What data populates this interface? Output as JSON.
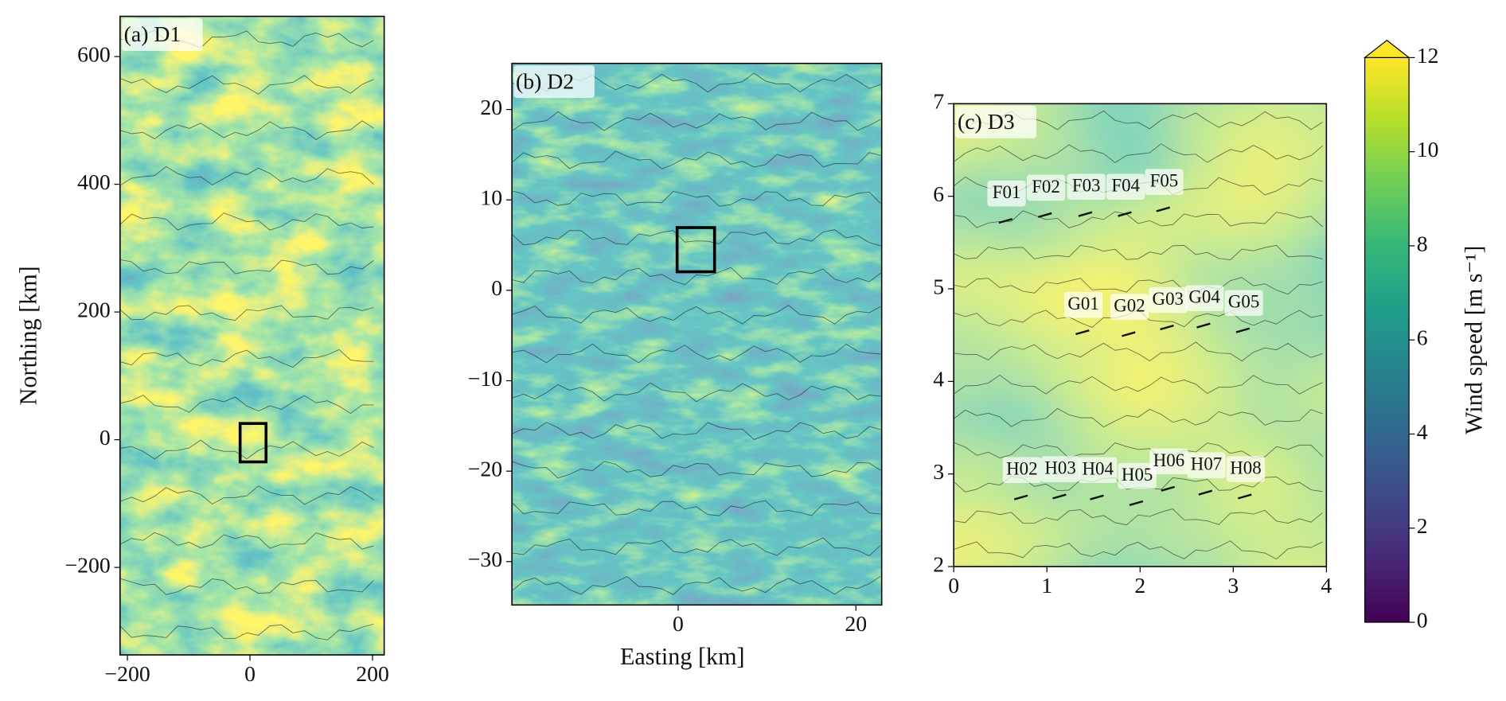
{
  "chart_data": [
    {
      "type": "map",
      "title": "(a) D1",
      "ylabel": "Northing [km]",
      "xlim": [
        -212,
        219
      ],
      "ylim": [
        -337,
        663
      ],
      "xticks": [
        {
          "value": -200,
          "label": "−200"
        },
        0,
        200
      ],
      "yticks": [
        {
          "value": -200,
          "label": "−200"
        },
        0,
        200,
        400,
        600
      ]
    },
    {
      "type": "map",
      "title": "(b) D2",
      "xlabel": "Easting [km]",
      "xlim": [
        -18.7,
        22.9
      ],
      "ylim": [
        -34.8,
        25.1
      ],
      "xticks": [
        0,
        20
      ],
      "yticks": [
        {
          "value": -30,
          "label": "−30"
        },
        {
          "value": -20,
          "label": "−20"
        },
        {
          "value": -10,
          "label": "−10"
        },
        0,
        10,
        20
      ]
    },
    {
      "type": "map",
      "title": "(c) D3",
      "xlim": [
        0,
        4
      ],
      "ylim": [
        2,
        7
      ],
      "xticks": [
        0,
        1,
        2,
        3,
        4
      ],
      "yticks": [
        2,
        3,
        4,
        5,
        6,
        7
      ],
      "annotations": [
        "F01",
        "F02",
        "F03",
        "F04",
        "F05",
        "G01",
        "G02",
        "G03",
        "G04",
        "G05",
        "H02",
        "H03",
        "H04",
        "H05",
        "H06",
        "H07",
        "H08"
      ]
    },
    {
      "type": "colorbar",
      "label": "Wind speed [m s⁻¹]",
      "colormap": "viridis",
      "ylim": [
        0,
        12
      ],
      "yticks": [
        0,
        2,
        4,
        6,
        8,
        10,
        12
      ]
    }
  ]
}
